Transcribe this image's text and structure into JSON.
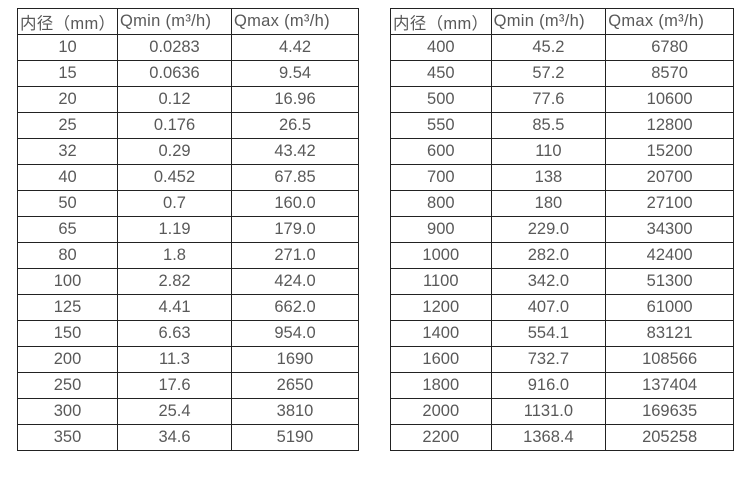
{
  "colors": {
    "background": "#ffffff",
    "border": "#222222",
    "text": "#595959"
  },
  "columns": [
    "内径（mm）",
    "Qmin (m³/h)",
    "Qmax (m³/h)"
  ],
  "left_table": {
    "rows": [
      [
        "10",
        "0.0283",
        "4.42"
      ],
      [
        "15",
        "0.0636",
        "9.54"
      ],
      [
        "20",
        "0.12",
        "16.96"
      ],
      [
        "25",
        "0.176",
        "26.5"
      ],
      [
        "32",
        "0.29",
        "43.42"
      ],
      [
        "40",
        "0.452",
        "67.85"
      ],
      [
        "50",
        "0.7",
        "160.0"
      ],
      [
        "65",
        "1.19",
        "179.0"
      ],
      [
        "80",
        "1.8",
        "271.0"
      ],
      [
        "100",
        "2.82",
        "424.0"
      ],
      [
        "125",
        "4.41",
        "662.0"
      ],
      [
        "150",
        "6.63",
        "954.0"
      ],
      [
        "200",
        "11.3",
        "1690"
      ],
      [
        "250",
        "17.6",
        "2650"
      ],
      [
        "300",
        "25.4",
        "3810"
      ],
      [
        "350",
        "34.6",
        "5190"
      ]
    ]
  },
  "right_table": {
    "rows": [
      [
        "400",
        "45.2",
        "6780"
      ],
      [
        "450",
        "57.2",
        "8570"
      ],
      [
        "500",
        "77.6",
        "10600"
      ],
      [
        "550",
        "85.5",
        "12800"
      ],
      [
        "600",
        "110",
        "15200"
      ],
      [
        "700",
        "138",
        "20700"
      ],
      [
        "800",
        "180",
        "27100"
      ],
      [
        "900",
        "229.0",
        "34300"
      ],
      [
        "1000",
        "282.0",
        "42400"
      ],
      [
        "1100",
        "342.0",
        "51300"
      ],
      [
        "1200",
        "407.0",
        "61000"
      ],
      [
        "1400",
        "554.1",
        "83121"
      ],
      [
        "1600",
        "732.7",
        "108566"
      ],
      [
        "1800",
        "916.0",
        "137404"
      ],
      [
        "2000",
        "1131.0",
        "169635"
      ],
      [
        "2200",
        "1368.4",
        "205258"
      ]
    ]
  }
}
